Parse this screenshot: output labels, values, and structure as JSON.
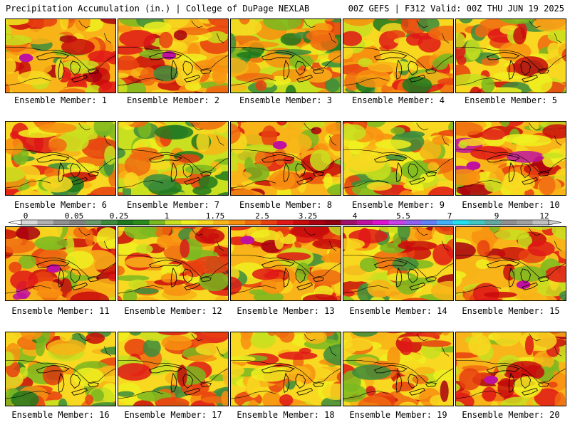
{
  "header": {
    "left": "Precipitation Accumulation (in.) | College of DuPage NEXLAB",
    "right": "00Z GEFS | F312 Valid: 00Z THU JUN 19 2025"
  },
  "members": [
    {
      "label": "Ensemble Member: 1",
      "seed": 11,
      "bias": 0.55
    },
    {
      "label": "Ensemble Member: 2",
      "seed": 23,
      "bias": 0.55
    },
    {
      "label": "Ensemble Member: 3",
      "seed": 37,
      "bias": 0.32
    },
    {
      "label": "Ensemble Member: 4",
      "seed": 41,
      "bias": 0.45
    },
    {
      "label": "Ensemble Member: 5",
      "seed": 53,
      "bias": 0.5
    },
    {
      "label": "Ensemble Member: 6",
      "seed": 61,
      "bias": 0.45
    },
    {
      "label": "Ensemble Member: 7",
      "seed": 71,
      "bias": 0.33
    },
    {
      "label": "Ensemble Member: 8",
      "seed": 83,
      "bias": 0.55
    },
    {
      "label": "Ensemble Member: 9",
      "seed": 97,
      "bias": 0.5
    },
    {
      "label": "Ensemble Member: 10",
      "seed": 101,
      "bias": 0.62
    },
    {
      "label": "Ensemble Member: 11",
      "seed": 113,
      "bias": 0.62
    },
    {
      "label": "Ensemble Member: 12",
      "seed": 127,
      "bias": 0.52
    },
    {
      "label": "Ensemble Member: 13",
      "seed": 131,
      "bias": 0.55
    },
    {
      "label": "Ensemble Member: 14",
      "seed": 149,
      "bias": 0.52
    },
    {
      "label": "Ensemble Member: 15",
      "seed": 151,
      "bias": 0.55
    },
    {
      "label": "Ensemble Member: 16",
      "seed": 163,
      "bias": 0.45
    },
    {
      "label": "Ensemble Member: 17",
      "seed": 173,
      "bias": 0.52
    },
    {
      "label": "Ensemble Member: 18",
      "seed": 181,
      "bias": 0.5
    },
    {
      "label": "Ensemble Member: 19",
      "seed": 191,
      "bias": 0.52
    },
    {
      "label": "Ensemble Member: 20",
      "seed": 199,
      "bias": 0.55
    }
  ],
  "colorbar": {
    "ticks": [
      "0",
      "0.05",
      "0.25",
      "1",
      "1.75",
      "2.5",
      "3.25",
      "4",
      "5.5",
      "7",
      "9",
      "12"
    ],
    "colors": [
      "#d8d8d8",
      "#b0b0b0",
      "#909090",
      "#808080",
      "#6a9a6a",
      "#3c8c3c",
      "#1e781e",
      "#2a8c1a",
      "#7ab820",
      "#c8e020",
      "#f0f020",
      "#f8d820",
      "#f8b418",
      "#f89010",
      "#f06a10",
      "#e84010",
      "#e01818",
      "#c80c0c",
      "#a80010",
      "#900010",
      "#a0106a",
      "#c010a0",
      "#e010d0",
      "#c840e8",
      "#9060f0",
      "#6080f8",
      "#40b0f8",
      "#20e0f0",
      "#40c8c0",
      "#60a8a0",
      "#909090",
      "#a0a0a0",
      "#c0c0c0"
    ]
  }
}
